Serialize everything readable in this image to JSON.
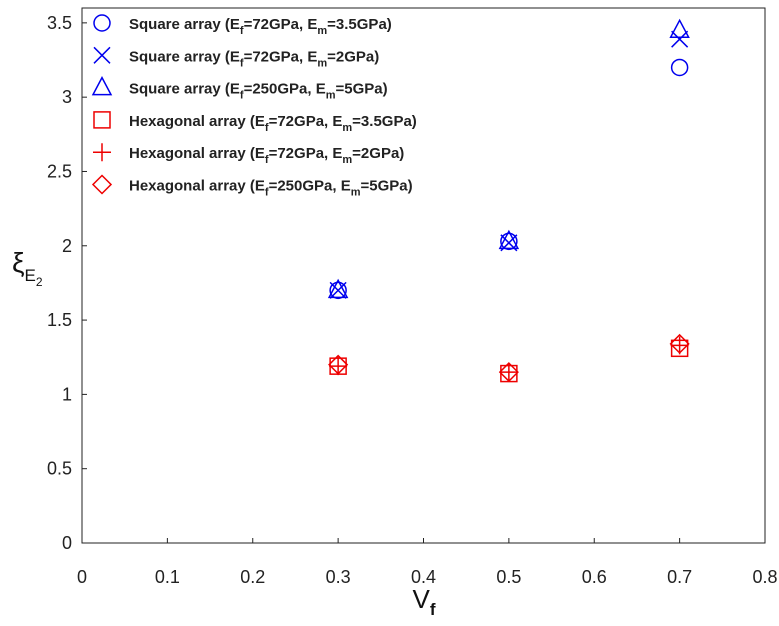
{
  "chart_data": {
    "type": "scatter",
    "xlabel": "V",
    "xlabel_sub": "f",
    "ylabel": "ξ",
    "ylabel_sub": "E",
    "ylabel_subsub": "2",
    "xlim": [
      0,
      0.8
    ],
    "ylim": [
      0,
      3.6
    ],
    "x_ticks": [
      "0",
      "0.1",
      "0.2",
      "0.3",
      "0.4",
      "0.5",
      "0.6",
      "0.7",
      "0.8"
    ],
    "x_tick_values": [
      0,
      0.1,
      0.2,
      0.3,
      0.4,
      0.5,
      0.6,
      0.7,
      0.8
    ],
    "y_ticks": [
      "0",
      "0.5",
      "1",
      "1.5",
      "2",
      "2.5",
      "3",
      "3.5"
    ],
    "y_tick_values": [
      0,
      0.5,
      1,
      1.5,
      2,
      2.5,
      3,
      3.5
    ],
    "grid": false,
    "legend_position": "top-left",
    "series": [
      {
        "legend": {
          "prefix": "Square array (E",
          "sub1": "f",
          "mid": "=72GPa, E",
          "sub2": "m",
          "suffix": "=3.5GPa)"
        },
        "marker": "circle",
        "color": "#0000ee",
        "x": [
          0.3,
          0.5,
          0.7
        ],
        "y": [
          1.7,
          2.03,
          3.2
        ]
      },
      {
        "legend": {
          "prefix": "Square array (E",
          "sub1": "f",
          "mid": "=72GPa, E",
          "sub2": "m",
          "suffix": "=2GPa)"
        },
        "marker": "x",
        "color": "#0000ee",
        "x": [
          0.3,
          0.5,
          0.7
        ],
        "y": [
          1.7,
          2.02,
          3.39
        ]
      },
      {
        "legend": {
          "prefix": "Square array (E",
          "sub1": "f",
          "mid": "=250GPa, E",
          "sub2": "m",
          "suffix": "=5GPa)"
        },
        "marker": "triangle",
        "color": "#0000ee",
        "x": [
          0.3,
          0.5,
          0.7
        ],
        "y": [
          1.7,
          2.03,
          3.45
        ]
      },
      {
        "legend": {
          "prefix": "Hexagonal array (E",
          "sub1": "f",
          "mid": "=72GPa, E",
          "sub2": "m",
          "suffix": "=3.5GPa)"
        },
        "marker": "square",
        "color": "#ee0000",
        "x": [
          0.3,
          0.5,
          0.7
        ],
        "y": [
          1.19,
          1.14,
          1.31
        ]
      },
      {
        "legend": {
          "prefix": "Hexagonal array (E",
          "sub1": "f",
          "mid": "=72GPa, E",
          "sub2": "m",
          "suffix": "=2GPa)"
        },
        "marker": "plus",
        "color": "#ee0000",
        "x": [
          0.3,
          0.5,
          0.7
        ],
        "y": [
          1.19,
          1.15,
          1.33
        ]
      },
      {
        "legend": {
          "prefix": "Hexagonal array (E",
          "sub1": "f",
          "mid": "=250GPa, E",
          "sub2": "m",
          "suffix": "=5GPa)"
        },
        "marker": "diamond",
        "color": "#ee0000",
        "x": [
          0.3,
          0.5,
          0.7
        ],
        "y": [
          1.2,
          1.15,
          1.34
        ]
      }
    ]
  }
}
